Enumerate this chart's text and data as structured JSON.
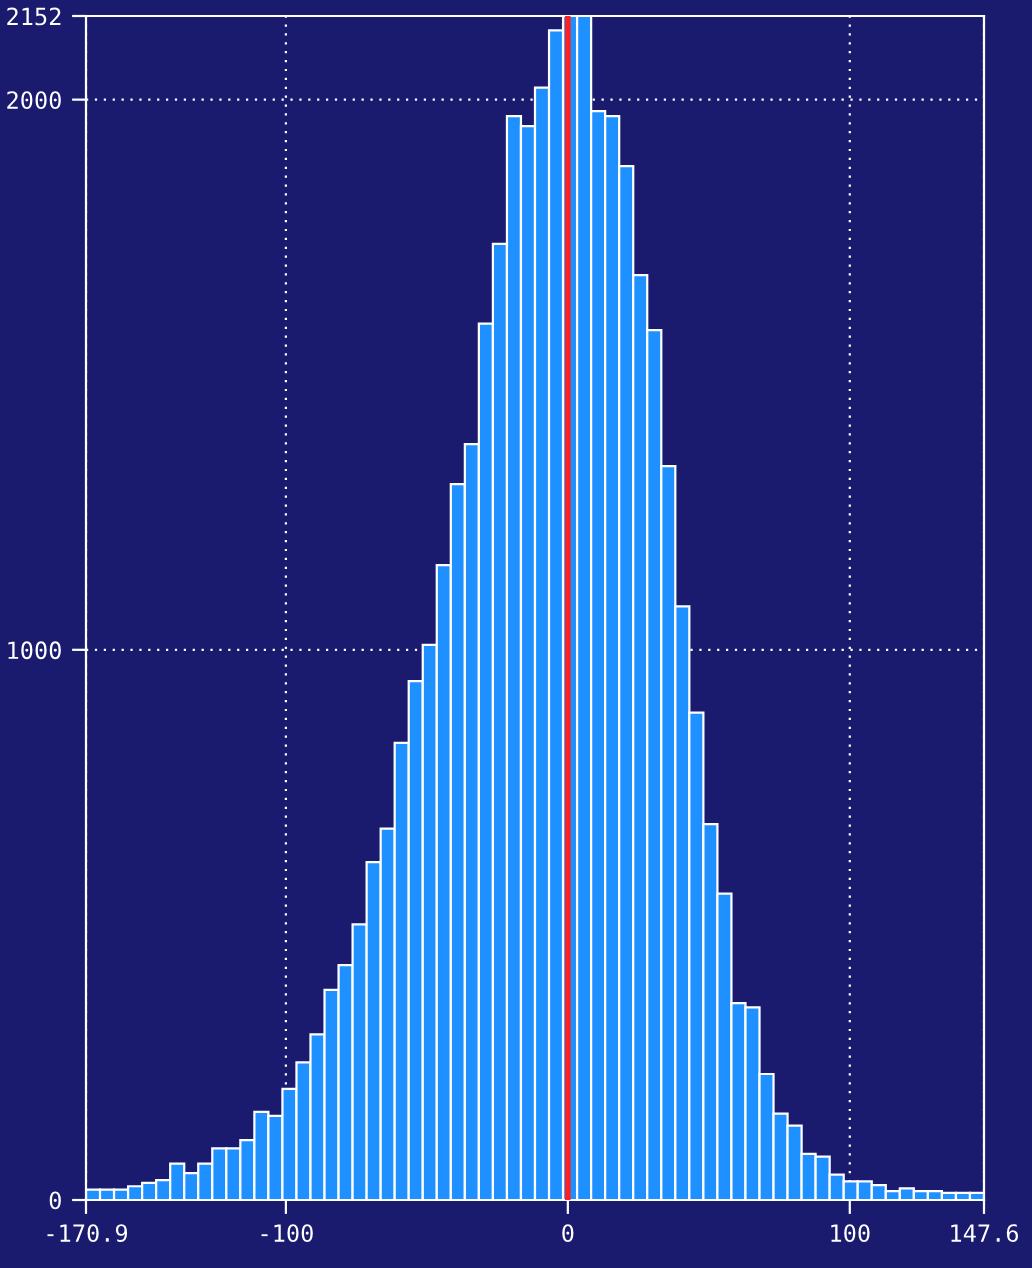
{
  "chart_data": {
    "type": "histogram",
    "bins": [
      -170.9,
      -165.92,
      -160.95,
      -155.97,
      -150.99,
      -146.02,
      -141.04,
      -136.06,
      -131.09,
      -126.11,
      -121.13,
      -116.16,
      -111.18,
      -106.21,
      -101.23,
      -96.25,
      -91.28,
      -86.3,
      -81.32,
      -76.35,
      -71.37,
      -66.39,
      -61.42,
      -56.44,
      -51.46,
      -46.49,
      -41.51,
      -36.53,
      -31.56,
      -26.58,
      -21.6,
      -16.63,
      -11.65,
      -6.67,
      -1.7,
      3.28,
      8.26,
      13.23,
      18.21,
      23.19,
      28.16,
      33.14,
      38.12,
      43.09,
      48.07,
      53.05,
      58.02,
      63.0,
      67.98,
      72.95,
      77.93,
      82.91,
      87.88,
      92.86,
      97.84,
      102.81,
      107.79,
      112.77,
      117.74,
      122.72,
      127.7,
      132.67,
      137.65,
      142.62,
      147.6
    ],
    "values": [
      19,
      19,
      19,
      25,
      31,
      36,
      66,
      49,
      66,
      94,
      94,
      109,
      160,
      153,
      202,
      250,
      301,
      382,
      427,
      501,
      614,
      675,
      831,
      943,
      1009,
      1154,
      1301,
      1374,
      1593,
      1738,
      1970,
      1952,
      2022,
      2126,
      2152,
      2152,
      1979,
      1970,
      1879,
      1681,
      1581,
      1334,
      1079,
      886,
      683,
      557,
      358,
      350,
      229,
      157,
      135,
      84,
      79,
      46,
      34,
      34,
      27,
      16,
      21,
      16,
      16,
      13,
      13,
      13
    ],
    "color": "#1e90ff",
    "xlim": [
      -170.9,
      147.6
    ],
    "xticks": [
      -170.9,
      -100,
      0,
      100,
      147.6
    ],
    "ylim": [
      0,
      2152
    ],
    "yticks": [
      0,
      1000,
      2000,
      2152
    ],
    "grid": true,
    "ref_lines": [
      {
        "axis": "x",
        "value": 0,
        "color": "#ff2020"
      }
    ]
  }
}
